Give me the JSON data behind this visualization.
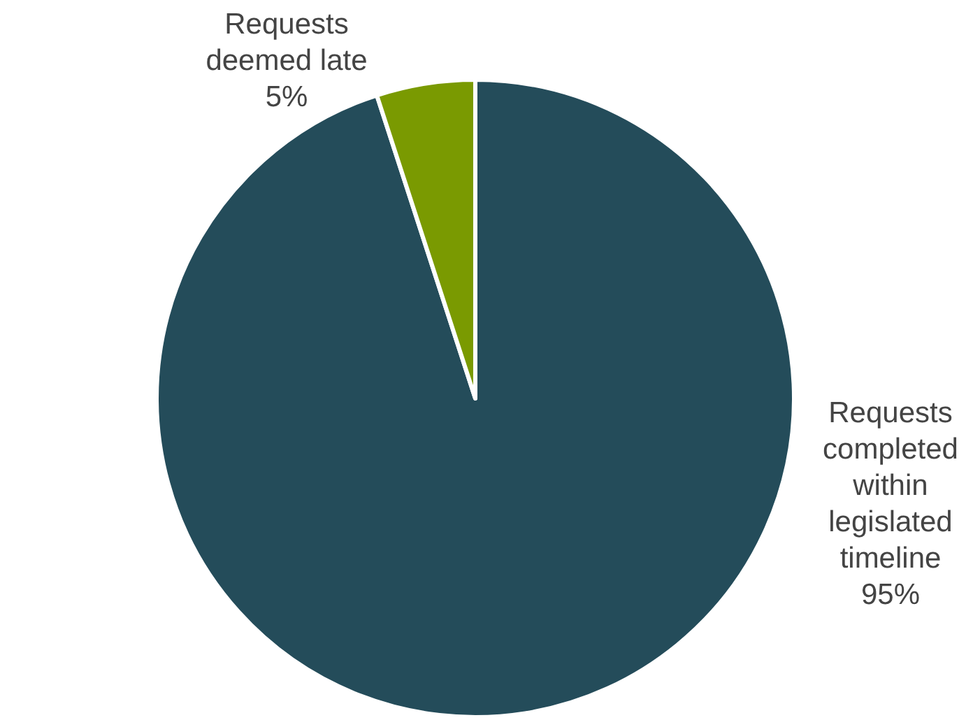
{
  "chart_data": {
    "type": "pie",
    "categories": [
      "Requests completed within legislated timeline",
      "Requests deemed late"
    ],
    "values": [
      95,
      5
    ],
    "colors": [
      "#244c5a",
      "#7a9a01"
    ],
    "value_labels": [
      "95%",
      "5%"
    ]
  }
}
